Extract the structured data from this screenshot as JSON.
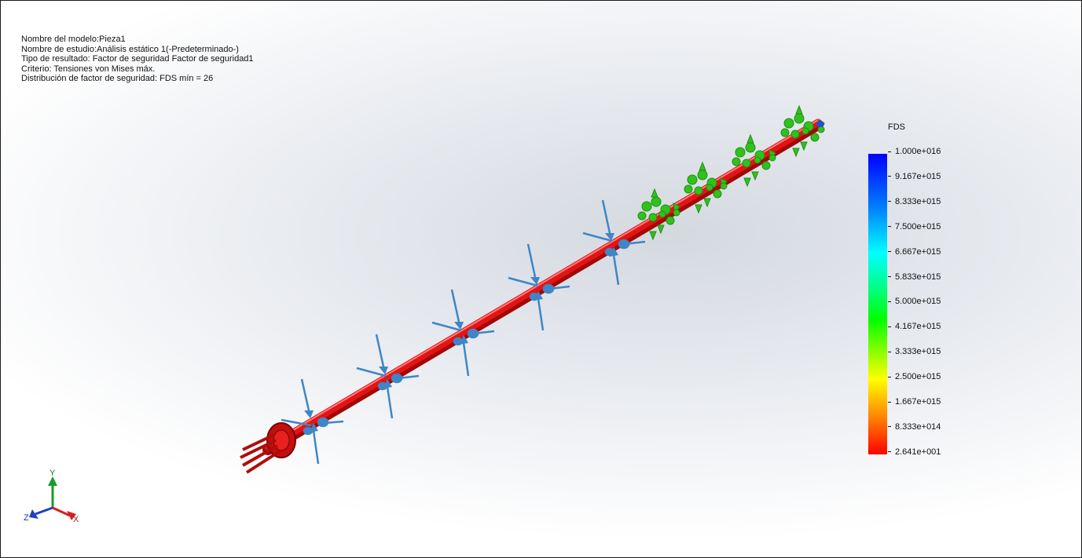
{
  "info": {
    "model_name": "Nombre del modelo:Pieza1",
    "study_name": "Nombre de estudio:Análisis estático 1(-Predeterminado-)",
    "result_type": "Tipo de resultado: Factor de seguridad Factor de seguridad1",
    "criterion": "Criterio: Tensiones von Mises máx.",
    "distribution": "Distribución de factor de seguridad: FDS mín = 26"
  },
  "legend": {
    "title": "FDS",
    "ticks": [
      "1.000e+016",
      "9.167e+015",
      "8.333e+015",
      "7.500e+015",
      "6.667e+015",
      "5.833e+015",
      "5.000e+015",
      "4.167e+015",
      "3.333e+015",
      "2.500e+015",
      "1.667e+015",
      "8.333e+014",
      "2.641e+001"
    ]
  },
  "triad": {
    "x": "X",
    "y": "Y",
    "z": "Z"
  },
  "colors": {
    "shaft": "#e01010",
    "load_arrows": "#3e86c6",
    "fixture_arrows": "#2fc21d",
    "y_axis": "#1a9a2a",
    "x_axis": "#d42020",
    "z_axis": "#2040c0"
  },
  "icons": [
    "force-arrow-icon",
    "fixture-arrow-icon",
    "coordinate-triad-icon"
  ]
}
